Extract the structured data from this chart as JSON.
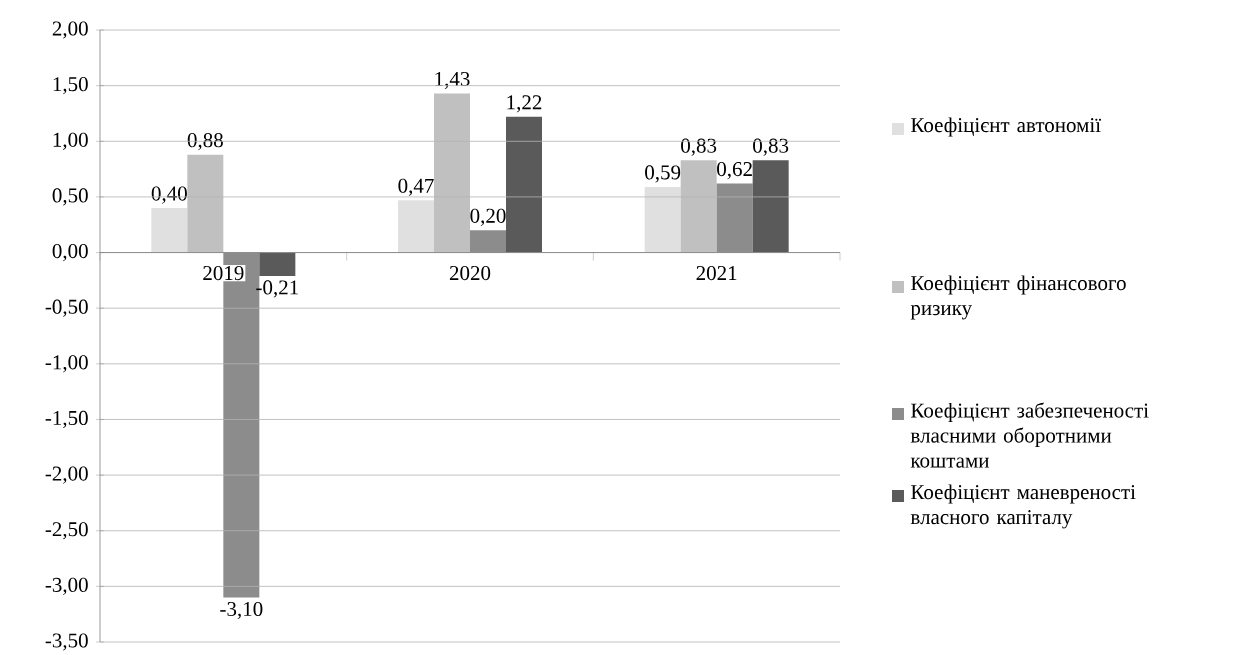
{
  "chart_data": {
    "type": "bar",
    "categories": [
      "2019",
      "2020",
      "2021"
    ],
    "series": [
      {
        "name": "Коефіцієнт автономії",
        "color": "#e0e0e0",
        "values": [
          0.4,
          0.47,
          0.59
        ],
        "value_labels": [
          "0,40",
          "0,47",
          "0,59"
        ]
      },
      {
        "name": "Коефіцієнт фінансового ризику",
        "color": "#c0c0c0",
        "values": [
          0.88,
          1.43,
          0.83
        ],
        "value_labels": [
          "0,88",
          "1,43",
          "0,83"
        ]
      },
      {
        "name": "Коефіцієнт  забезпеченості власними оборотними коштами",
        "color": "#8c8c8c",
        "values": [
          -3.1,
          0.2,
          0.62
        ],
        "value_labels": [
          "-3,10",
          "0,20",
          "0,62"
        ]
      },
      {
        "name": "Коефіцієнт маневреності власного капіталу",
        "color": "#5a5a5a",
        "values": [
          -0.21,
          1.22,
          0.83
        ],
        "value_labels": [
          "-0,21",
          "1,22",
          "0,83"
        ]
      }
    ],
    "ylim": [
      -3.5,
      2.0
    ],
    "yticks": [
      {
        "value": -3.5,
        "label": "-3,50"
      },
      {
        "value": -3.0,
        "label": "-3,00"
      },
      {
        "value": -2.5,
        "label": "-2,50"
      },
      {
        "value": -2.0,
        "label": "-2,00"
      },
      {
        "value": -1.5,
        "label": "-1,50"
      },
      {
        "value": -1.0,
        "label": "-1,00"
      },
      {
        "value": -0.5,
        "label": "-0,50"
      },
      {
        "value": 0.0,
        "label": "0,00"
      },
      {
        "value": 0.5,
        "label": "0,50"
      },
      {
        "value": 1.0,
        "label": "1,00"
      },
      {
        "value": 1.5,
        "label": "1,50"
      },
      {
        "value": 2.0,
        "label": "2,00"
      }
    ],
    "grid": "y",
    "legend": "right"
  }
}
